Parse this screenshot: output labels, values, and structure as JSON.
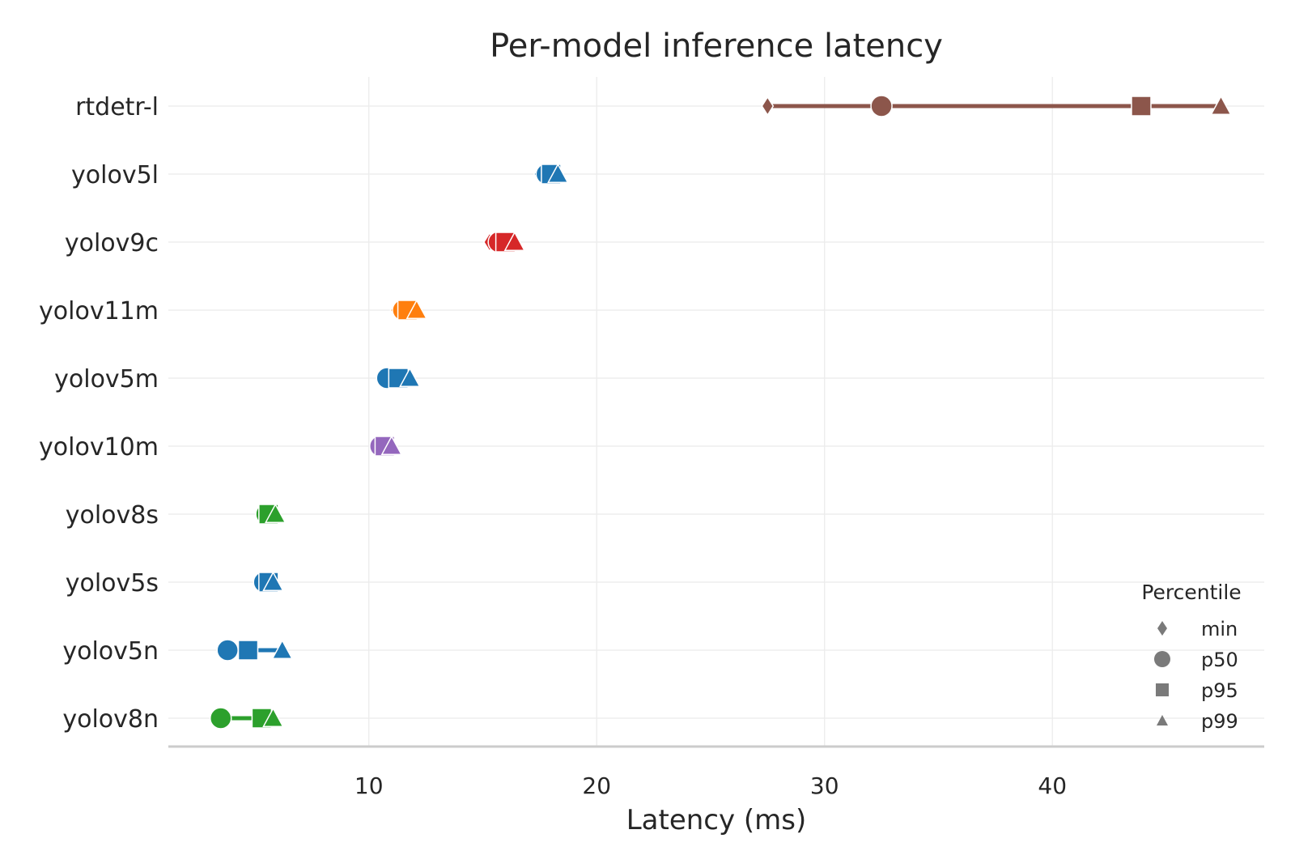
{
  "chart_data": {
    "type": "scatter",
    "title": "Per-model inference latency",
    "xlabel": "Latency (ms)",
    "ylabel": "",
    "xlim": [
      1.2,
      49.3
    ],
    "xticks": [
      10,
      20,
      30,
      40
    ],
    "grid": true,
    "legend": {
      "title": "Percentile",
      "placement": "bottom-right",
      "entries": [
        {
          "label": "min",
          "marker": "diamond"
        },
        {
          "label": "p50",
          "marker": "circle"
        },
        {
          "label": "p95",
          "marker": "square"
        },
        {
          "label": "p99",
          "marker": "triangle"
        }
      ]
    },
    "models": [
      {
        "name": "rtdetr-l",
        "color": "#8c564b",
        "min": 27.5,
        "p50": 32.5,
        "p95": 43.9,
        "p99": 47.4
      },
      {
        "name": "yolov5l",
        "color": "#1f77b4",
        "min": 17.5,
        "p50": 17.8,
        "p95": 18.0,
        "p99": 18.3
      },
      {
        "name": "yolov9c",
        "color": "#d62728",
        "min": 15.3,
        "p50": 15.7,
        "p95": 16.0,
        "p99": 16.4
      },
      {
        "name": "yolov11m",
        "color": "#ff7f0e",
        "min": 11.2,
        "p50": 11.5,
        "p95": 11.7,
        "p99": 12.1
      },
      {
        "name": "yolov5m",
        "color": "#1f77b4",
        "min": 10.6,
        "p50": 10.8,
        "p95": 11.3,
        "p99": 11.8
      },
      {
        "name": "yolov10m",
        "color": "#9467bd",
        "min": 10.3,
        "p50": 10.5,
        "p95": 10.7,
        "p99": 11.0
      },
      {
        "name": "yolov8s",
        "color": "#2ca02c",
        "min": 5.4,
        "p50": 5.5,
        "p95": 5.6,
        "p99": 5.9
      },
      {
        "name": "yolov5s",
        "color": "#1f77b4",
        "min": 5.3,
        "p50": 5.4,
        "p95": 5.6,
        "p99": 5.8
      },
      {
        "name": "yolov5n",
        "color": "#1f77b4",
        "min": 3.6,
        "p50": 3.8,
        "p95": 4.7,
        "p99": 6.2
      },
      {
        "name": "yolov8n",
        "color": "#2ca02c",
        "min": 3.4,
        "p50": 3.5,
        "p95": 5.3,
        "p99": 5.8
      }
    ]
  }
}
